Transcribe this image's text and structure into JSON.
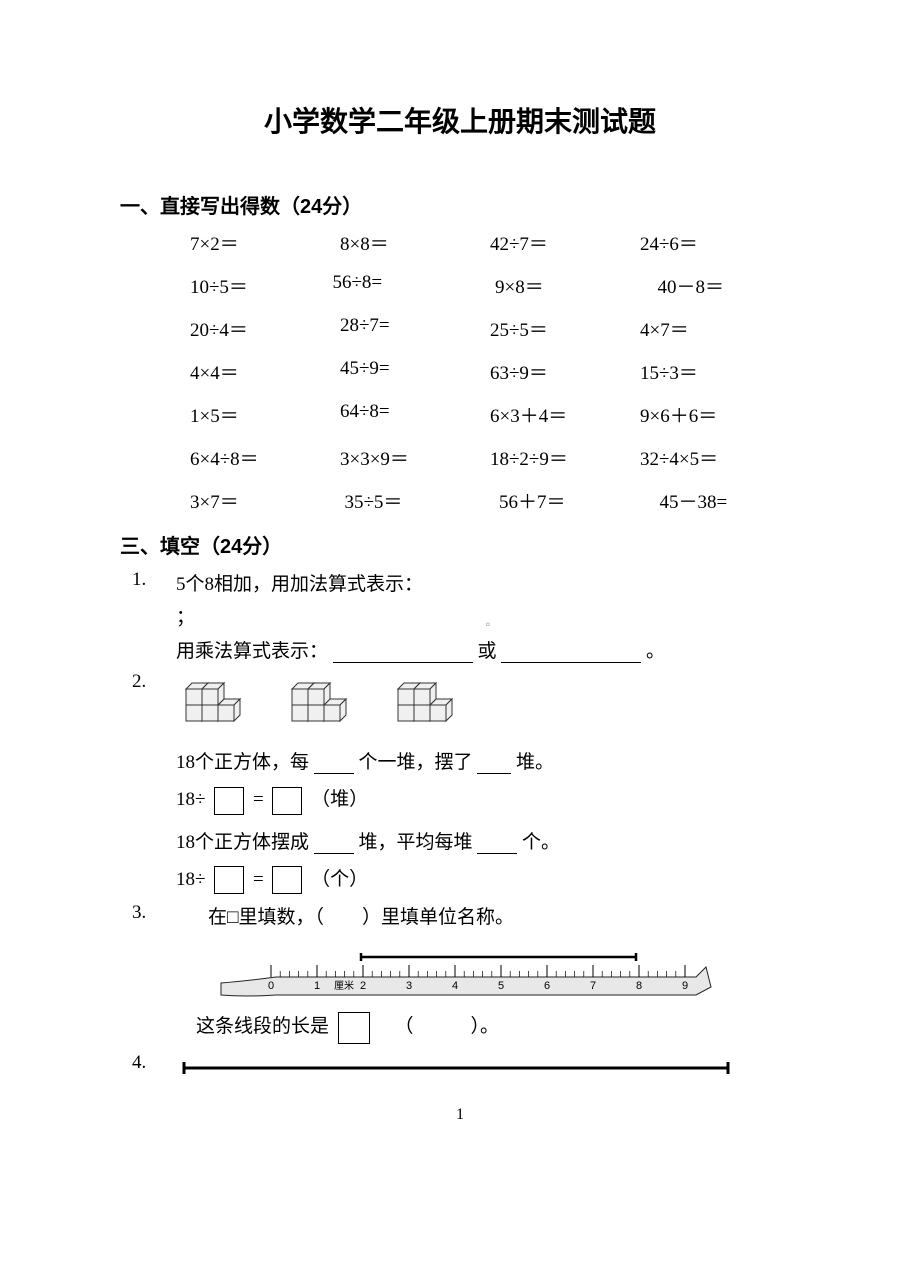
{
  "title": "小学数学二年级上册期末测试题",
  "section1": {
    "heading": "一、直接写出得数（24分）"
  },
  "eq": {
    "r1": {
      "c1": "7×2＝",
      "c2": "8×8＝",
      "c3": "42÷7＝",
      "c4": "24÷6＝"
    },
    "r2": {
      "c1": "10÷5＝",
      "c2": "56÷8=",
      "c3": "9×8＝",
      "c4": "40－8＝"
    },
    "r3": {
      "c1": "20÷4＝",
      "c2": "28÷7=",
      "c3": "25÷5＝",
      "c4": "4×7＝"
    },
    "r4": {
      "c1": "4×4＝",
      "c2": "45÷9=",
      "c3": "63÷9＝",
      "c4": "15÷3＝"
    },
    "r5": {
      "c1": "1×5＝",
      "c2": "64÷8=",
      "c3": "6×3＋4＝",
      "c4": "9×6＋6＝"
    },
    "r6": {
      "c1": "6×4÷8＝",
      "c2": "3×3×9＝",
      "c3": "18÷2÷9＝",
      "c4": "32÷4×5＝"
    },
    "r7": {
      "c1": "3×7＝",
      "c2": "35÷5＝",
      "c3": "56＋7＝",
      "c4": "45－38="
    }
  },
  "section3": {
    "heading": "三、填空（24分）"
  },
  "q1": {
    "num": "1.",
    "line1": "5个8相加，用加法算式表示：",
    "semicolon": "；",
    "line2a": "用乘法算式表示：",
    "line2b": "或",
    "line2c": "。"
  },
  "q2": {
    "num": "2.",
    "line1a": "18个正方体，每",
    "line1b": "个一堆，摆了",
    "line1c": "堆。",
    "line2a": "18÷",
    "line2b": "=",
    "line2c": "（堆）",
    "line3a": "18个正方体摆成",
    "line3b": "堆，平均每堆",
    "line3c": "个。",
    "line4a": "18÷",
    "line4b": "=",
    "line4c": "（个）"
  },
  "q3": {
    "num": "3.",
    "text": "在□里填数，（　　）里填单位名称。",
    "len1": "这条线段的长是",
    "len2": "（　　　）。"
  },
  "q4": {
    "num": "4."
  },
  "ruler": {
    "labels": [
      "0",
      "1",
      "厘米",
      "2",
      "3",
      "4",
      "5",
      "6",
      "7",
      "8",
      "9"
    ]
  },
  "pageNumber": "1",
  "colors": {
    "text": "#000000",
    "bg": "#ffffff",
    "rulerFill": "#e8e8e8",
    "rulerStroke": "#222222"
  }
}
